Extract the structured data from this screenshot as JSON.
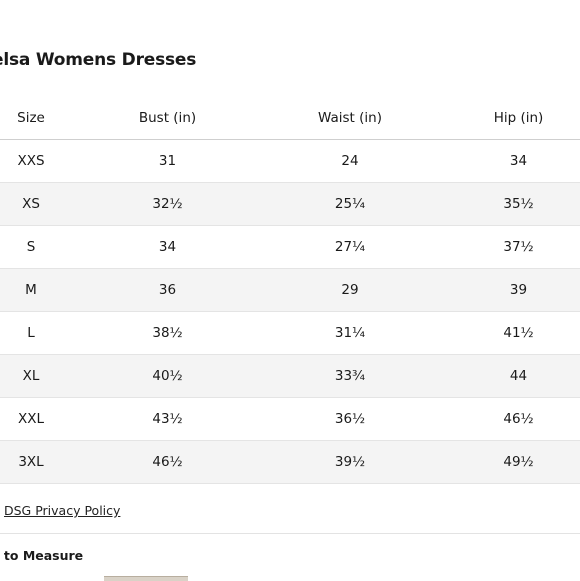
{
  "title": "elsa Womens Dresses",
  "table": {
    "headers": [
      "Size",
      "Bust (in)",
      "Waist (in)",
      "Hip (in)"
    ],
    "rows": [
      [
        "XXS",
        "31",
        "24",
        "34"
      ],
      [
        "XS",
        "32½",
        "25¼",
        "35½"
      ],
      [
        "S",
        "34",
        "27¼",
        "37½"
      ],
      [
        "M",
        "36",
        "29",
        "39"
      ],
      [
        "L",
        "38½",
        "31¼",
        "41½"
      ],
      [
        "XL",
        "40½",
        "33¾",
        "44"
      ],
      [
        "XXL",
        "43½",
        "36½",
        "46½"
      ],
      [
        "3XL",
        "46½",
        "39½",
        "49½"
      ]
    ]
  },
  "privacy_link": "DSG Privacy Policy",
  "how_to_measure": "w to Measure"
}
